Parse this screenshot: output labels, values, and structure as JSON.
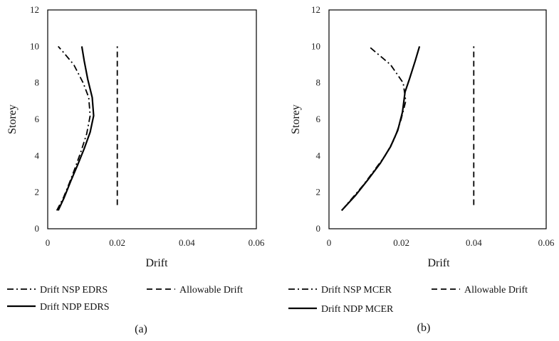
{
  "colors": {
    "line": "#000000",
    "frame": "#000000",
    "text": "#111111"
  },
  "chart_data": [
    {
      "type": "line",
      "caption": "(a)",
      "xlabel": "Drift",
      "ylabel": "Storey",
      "xlim": [
        0,
        0.06
      ],
      "ylim": [
        0,
        12
      ],
      "xticks": [
        0,
        0.02,
        0.04,
        0.06
      ],
      "xtick_labels": [
        "0",
        "0.02",
        "0.04",
        "0.06"
      ],
      "yticks": [
        0,
        2,
        4,
        6,
        8,
        10,
        12
      ],
      "ytick_labels": [
        "0",
        "2",
        "4",
        "6",
        "8",
        "10",
        "12"
      ],
      "grid": false,
      "legend_position": "bottom",
      "series": [
        {
          "name": "Drift NSP EDRS",
          "style": "dashdot",
          "points": [
            [
              0.0026,
              1.0
            ],
            [
              0.0045,
              1.7
            ],
            [
              0.0062,
              2.5
            ],
            [
              0.0078,
              3.3
            ],
            [
              0.0095,
              4.2
            ],
            [
              0.0112,
              5.2
            ],
            [
              0.0122,
              6.2
            ],
            [
              0.0118,
              7.2
            ],
            [
              0.0102,
              8.0
            ],
            [
              0.0075,
              9.0
            ],
            [
              0.0044,
              9.7
            ],
            [
              0.003,
              10.0
            ]
          ]
        },
        {
          "name": "Allowable Drift",
          "style": "dashed",
          "points": [
            [
              0.02,
              1.3
            ],
            [
              0.02,
              10.0
            ]
          ]
        },
        {
          "name": "Drift NDP EDRS",
          "style": "solid",
          "points": [
            [
              0.003,
              1.0
            ],
            [
              0.0047,
              1.7
            ],
            [
              0.0066,
              2.6
            ],
            [
              0.0086,
              3.5
            ],
            [
              0.0105,
              4.4
            ],
            [
              0.0122,
              5.3
            ],
            [
              0.0132,
              6.2
            ],
            [
              0.0128,
              7.2
            ],
            [
              0.0115,
              8.2
            ],
            [
              0.0105,
              9.2
            ],
            [
              0.0098,
              10.0
            ]
          ]
        }
      ]
    },
    {
      "type": "line",
      "caption": "(b)",
      "xlabel": "Drift",
      "ylabel": "Storey",
      "xlim": [
        0,
        0.06
      ],
      "ylim": [
        0,
        12
      ],
      "xticks": [
        0,
        0.02,
        0.04,
        0.06
      ],
      "xtick_labels": [
        "0",
        "0.02",
        "0.04",
        "0.06"
      ],
      "yticks": [
        0,
        2,
        4,
        6,
        8,
        10,
        12
      ],
      "ytick_labels": [
        "0",
        "2",
        "4",
        "6",
        "8",
        "10",
        "12"
      ],
      "grid": false,
      "legend_position": "bottom",
      "series": [
        {
          "name": "Drift NSP MCER",
          "style": "dashdot",
          "points": [
            [
              0.0035,
              1.0
            ],
            [
              0.0065,
              1.7
            ],
            [
              0.0095,
              2.4
            ],
            [
              0.0125,
              3.2
            ],
            [
              0.0155,
              4.0
            ],
            [
              0.018,
              4.9
            ],
            [
              0.0198,
              5.9
            ],
            [
              0.0212,
              7.0
            ],
            [
              0.0205,
              8.0
            ],
            [
              0.017,
              9.0
            ],
            [
              0.011,
              10.0
            ]
          ]
        },
        {
          "name": "Allowable Drift",
          "style": "dashed",
          "points": [
            [
              0.04,
              1.3
            ],
            [
              0.04,
              10.0
            ]
          ]
        },
        {
          "name": "Drift NDP MCER",
          "style": "solid",
          "points": [
            [
              0.0035,
              1.0
            ],
            [
              0.0072,
              1.8
            ],
            [
              0.0108,
              2.7
            ],
            [
              0.0142,
              3.6
            ],
            [
              0.017,
              4.5
            ],
            [
              0.019,
              5.4
            ],
            [
              0.0203,
              6.4
            ],
            [
              0.021,
              7.5
            ],
            [
              0.0222,
              8.2
            ],
            [
              0.0238,
              9.2
            ],
            [
              0.025,
              10.0
            ]
          ]
        }
      ]
    }
  ]
}
